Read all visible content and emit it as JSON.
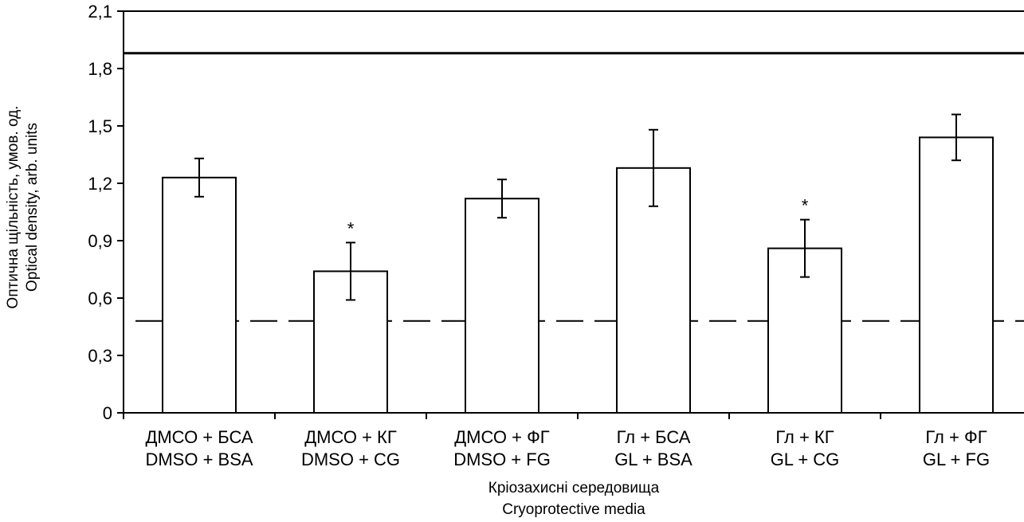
{
  "chart_data": {
    "type": "bar",
    "categories": [
      {
        "line1": "ДМСО + БСА",
        "line2": "DMSO + BSA"
      },
      {
        "line1": "ДМСО + КГ",
        "line2": "DMSO + CG"
      },
      {
        "line1": "ДМСО + ФГ",
        "line2": "DMSO + FG"
      },
      {
        "line1": "Гл + БСА",
        "line2": "GL + BSA"
      },
      {
        "line1": "Гл + КГ",
        "line2": "GL + CG"
      },
      {
        "line1": "Гл + ФГ",
        "line2": "GL + FG"
      }
    ],
    "values": [
      1.23,
      0.74,
      1.12,
      1.28,
      0.86,
      1.44
    ],
    "errors": [
      0.1,
      0.15,
      0.1,
      0.2,
      0.15,
      0.12
    ],
    "significance": [
      "",
      "*",
      "",
      "",
      "*",
      ""
    ],
    "reference_lines": [
      {
        "value": 1.88,
        "style": "solid"
      },
      {
        "value": 0.48,
        "style": "dashed"
      }
    ],
    "ylabel_line1": "Оптична щільність, умов. од.",
    "ylabel_line2": "Optical density, arb. units",
    "xlabel_line1": "Кріозахисні середовища",
    "xlabel_line2": "Cryoprotective media",
    "ylim": [
      0,
      2.1
    ],
    "yticks": [
      0,
      0.3,
      0.6,
      0.9,
      1.2,
      1.5,
      1.8,
      2.1
    ],
    "ytick_labels": [
      "0",
      "0,3",
      "0,6",
      "0,9",
      "1,2",
      "1,5",
      "1,8",
      "2,1"
    ],
    "grid": false,
    "colors": {
      "bar_fill": "#ffffff",
      "stroke": "#000000"
    }
  }
}
